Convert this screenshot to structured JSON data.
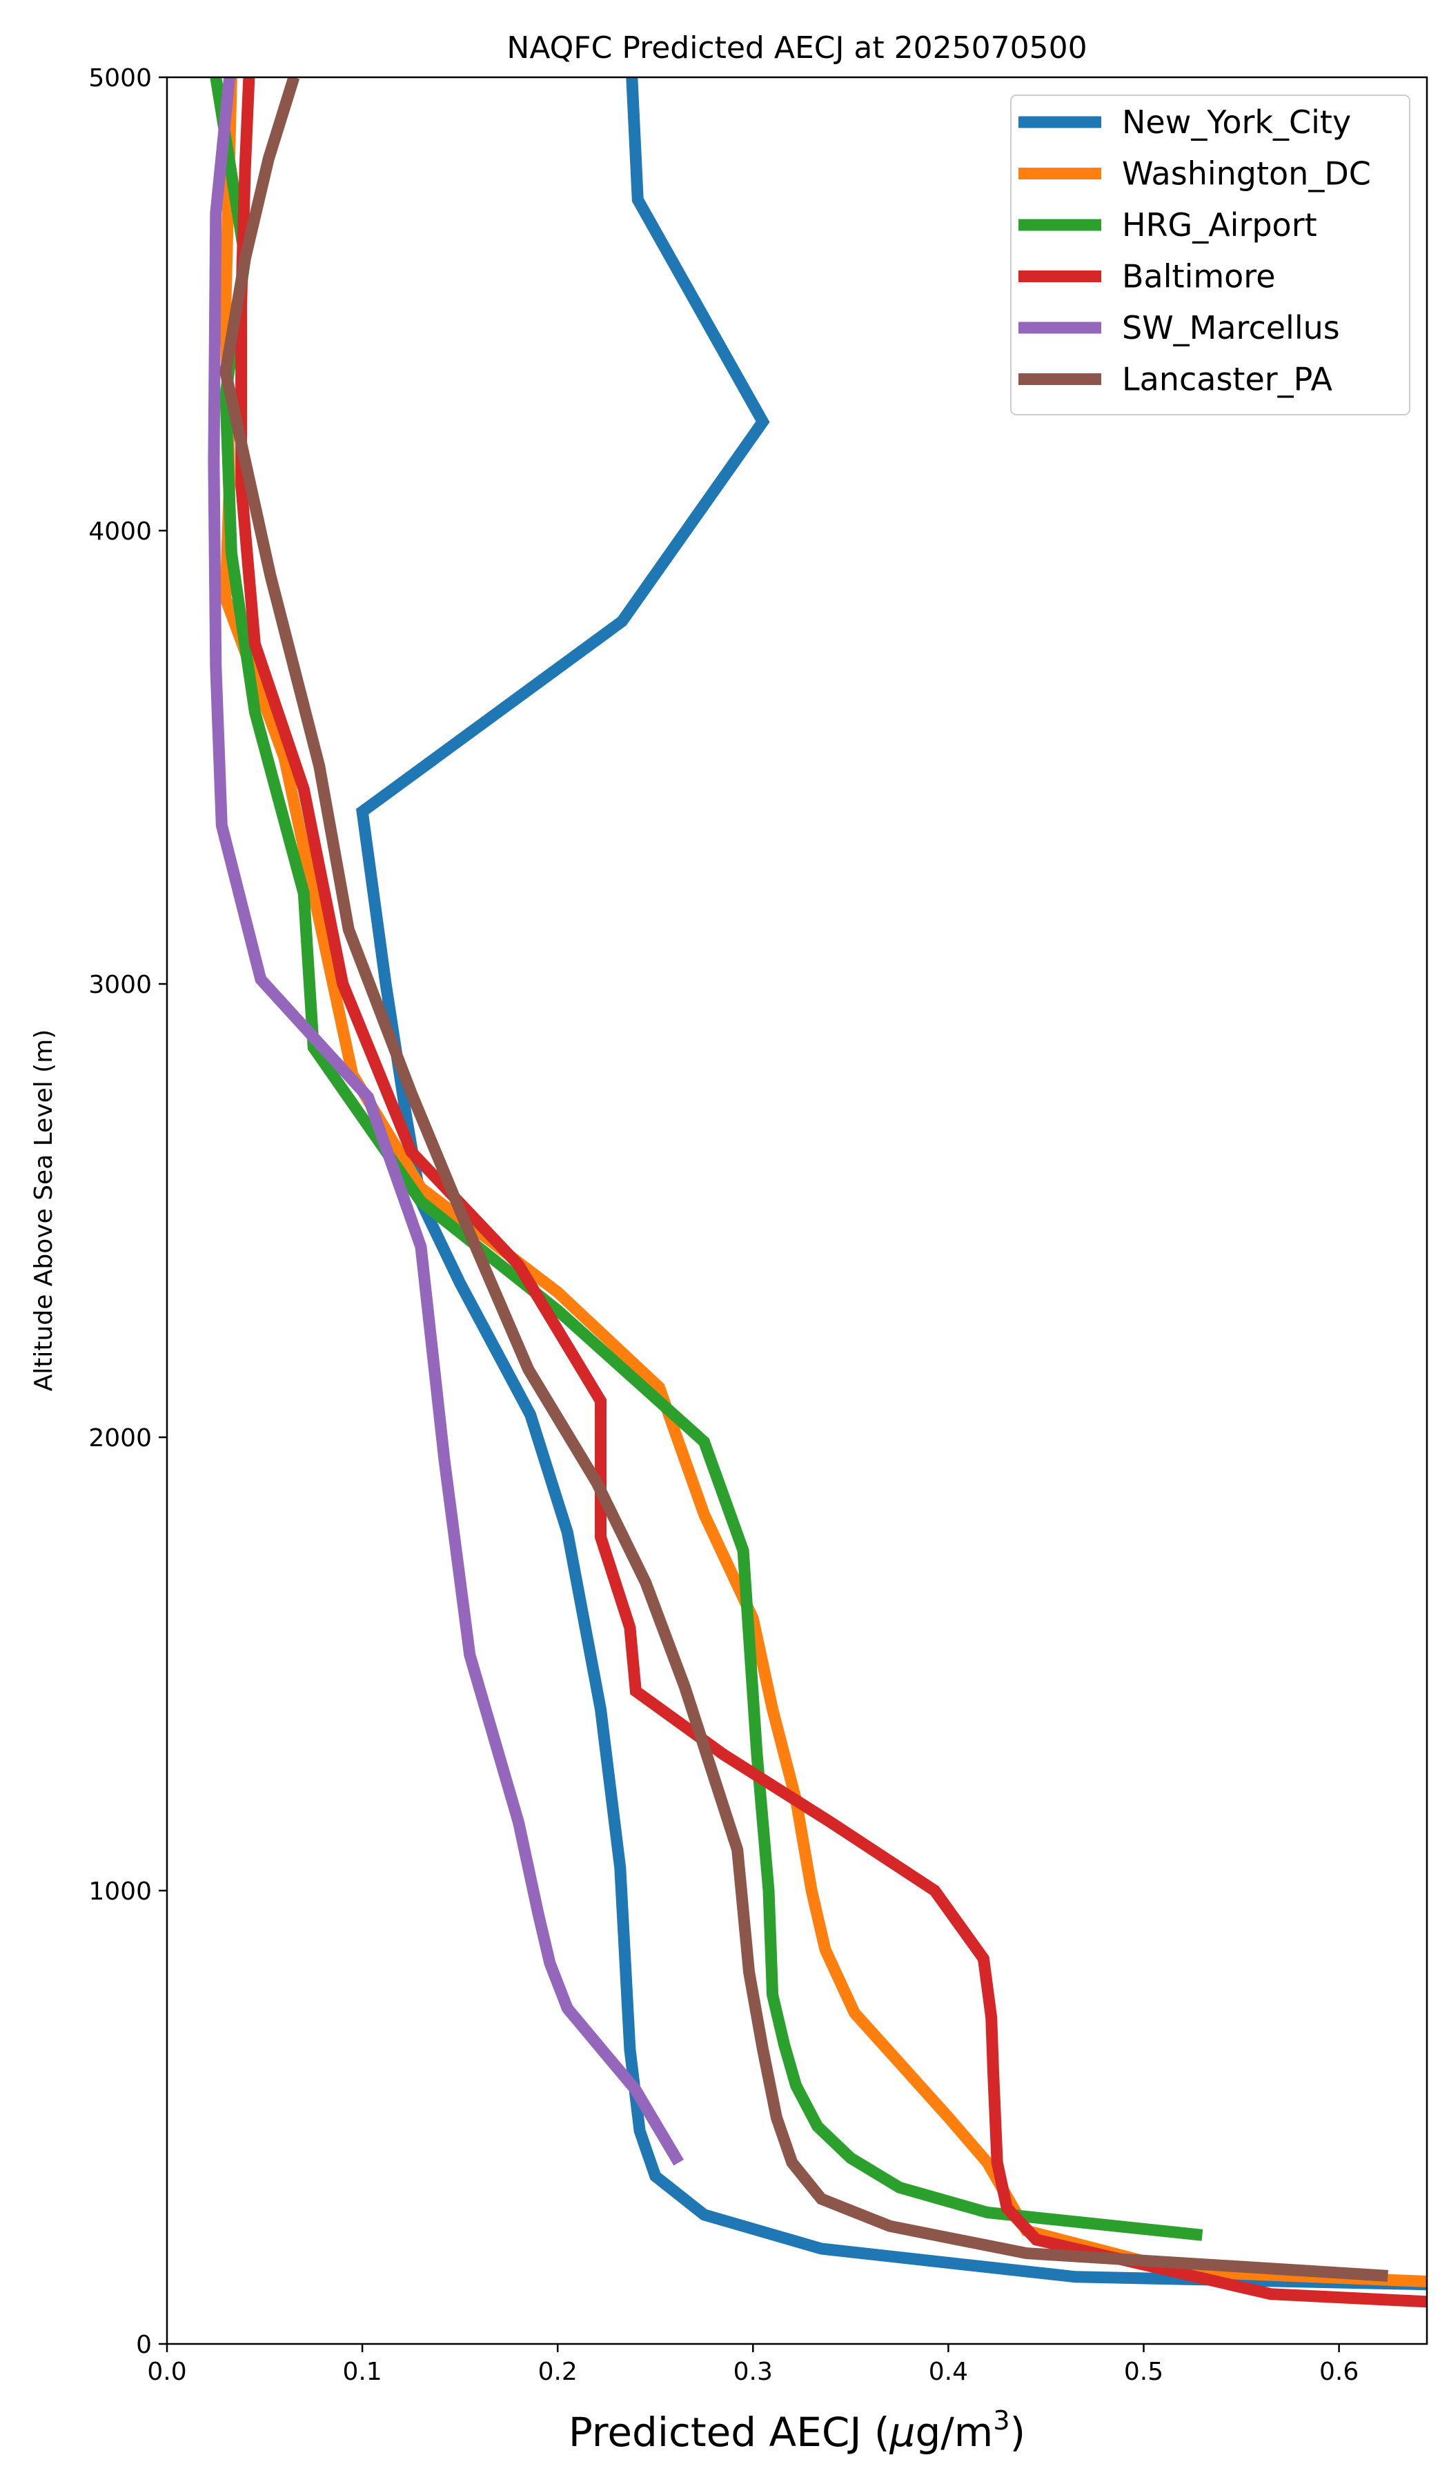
{
  "chart_data": {
    "type": "line",
    "title": "NAQFC Predicted AECJ at 2025070500",
    "xlabel": "Predicted AECJ (μg/m³)",
    "xlabel_main": "Predicted AECJ (",
    "xlabel_unit_mu": "μ",
    "xlabel_unit_rest": "g/m",
    "xlabel_unit_sup": "3",
    "xlabel_close": ")",
    "ylabel": "Altitude Above Sea Level (m)",
    "xlim": [
      0.0,
      0.645
    ],
    "ylim": [
      0,
      5000
    ],
    "xticks": [
      0.0,
      0.1,
      0.2,
      0.3,
      0.4,
      0.5,
      0.6
    ],
    "xtick_labels": [
      "0.0",
      "0.1",
      "0.2",
      "0.3",
      "0.4",
      "0.5",
      "0.6"
    ],
    "yticks": [
      0,
      1000,
      2000,
      3000,
      4000,
      5000
    ],
    "ytick_labels": [
      "0",
      "1000",
      "2000",
      "3000",
      "4000",
      "5000"
    ],
    "grid": false,
    "legend_position": "top-right",
    "series": [
      {
        "name": "New_York_City",
        "color": "#1f77b4",
        "points": [
          [
            0.66,
            130
          ],
          [
            0.465,
            148
          ],
          [
            0.335,
            210
          ],
          [
            0.275,
            285
          ],
          [
            0.25,
            370
          ],
          [
            0.242,
            470
          ],
          [
            0.237,
            650
          ],
          [
            0.232,
            1050
          ],
          [
            0.222,
            1400
          ],
          [
            0.205,
            1790
          ],
          [
            0.186,
            2050
          ],
          [
            0.15,
            2340
          ],
          [
            0.13,
            2520
          ],
          [
            0.122,
            2720
          ],
          [
            0.112,
            3000
          ],
          [
            0.1,
            3380
          ],
          [
            0.233,
            3800
          ],
          [
            0.305,
            4240
          ],
          [
            0.241,
            4730
          ],
          [
            0.238,
            5000
          ]
        ]
      },
      {
        "name": "Washington_DC",
        "color": "#ff7f0e",
        "points": [
          [
            0.66,
            135
          ],
          [
            0.52,
            160
          ],
          [
            0.44,
            250
          ],
          [
            0.42,
            400
          ],
          [
            0.4,
            500
          ],
          [
            0.375,
            620
          ],
          [
            0.352,
            730
          ],
          [
            0.337,
            870
          ],
          [
            0.33,
            1000
          ],
          [
            0.322,
            1200
          ],
          [
            0.31,
            1400
          ],
          [
            0.3,
            1600
          ],
          [
            0.275,
            1830
          ],
          [
            0.252,
            2110
          ],
          [
            0.2,
            2320
          ],
          [
            0.13,
            2550
          ],
          [
            0.095,
            2800
          ],
          [
            0.08,
            3100
          ],
          [
            0.06,
            3500
          ],
          [
            0.03,
            3850
          ],
          [
            0.032,
            4100
          ],
          [
            0.03,
            4500
          ],
          [
            0.033,
            5000
          ]
        ]
      },
      {
        "name": "HRG_Airport",
        "color": "#2ca02c",
        "points": [
          [
            0.53,
            240
          ],
          [
            0.42,
            290
          ],
          [
            0.375,
            345
          ],
          [
            0.35,
            410
          ],
          [
            0.333,
            480
          ],
          [
            0.322,
            570
          ],
          [
            0.316,
            660
          ],
          [
            0.31,
            770
          ],
          [
            0.308,
            1000
          ],
          [
            0.302,
            1300
          ],
          [
            0.295,
            1750
          ],
          [
            0.275,
            1990
          ],
          [
            0.2,
            2280
          ],
          [
            0.13,
            2520
          ],
          [
            0.075,
            2860
          ],
          [
            0.07,
            3200
          ],
          [
            0.045,
            3600
          ],
          [
            0.033,
            3950
          ],
          [
            0.03,
            4300
          ],
          [
            0.04,
            4600
          ],
          [
            0.025,
            5000
          ]
        ]
      },
      {
        "name": "Baltimore",
        "color": "#d62728",
        "points": [
          [
            0.66,
            90
          ],
          [
            0.565,
            110
          ],
          [
            0.445,
            230
          ],
          [
            0.43,
            300
          ],
          [
            0.425,
            400
          ],
          [
            0.423,
            600
          ],
          [
            0.422,
            720
          ],
          [
            0.418,
            850
          ],
          [
            0.393,
            1000
          ],
          [
            0.34,
            1150
          ],
          [
            0.285,
            1300
          ],
          [
            0.24,
            1440
          ],
          [
            0.237,
            1580
          ],
          [
            0.222,
            1780
          ],
          [
            0.222,
            2080
          ],
          [
            0.18,
            2380
          ],
          [
            0.125,
            2630
          ],
          [
            0.09,
            3000
          ],
          [
            0.07,
            3430
          ],
          [
            0.045,
            3750
          ],
          [
            0.038,
            4100
          ],
          [
            0.038,
            4500
          ],
          [
            0.04,
            4800
          ],
          [
            0.042,
            5000
          ]
        ]
      },
      {
        "name": "SW_Marcellus",
        "color": "#9467bd",
        "points": [
          [
            0.262,
            400
          ],
          [
            0.24,
            560
          ],
          [
            0.205,
            740
          ],
          [
            0.196,
            840
          ],
          [
            0.19,
            950
          ],
          [
            0.18,
            1150
          ],
          [
            0.155,
            1520
          ],
          [
            0.142,
            1950
          ],
          [
            0.13,
            2420
          ],
          [
            0.103,
            2750
          ],
          [
            0.048,
            3010
          ],
          [
            0.028,
            3350
          ],
          [
            0.025,
            3700
          ],
          [
            0.024,
            4150
          ],
          [
            0.025,
            4700
          ],
          [
            0.032,
            5000
          ]
        ]
      },
      {
        "name": "Lancaster_PA",
        "color": "#8c564b",
        "points": [
          [
            0.625,
            150
          ],
          [
            0.44,
            200
          ],
          [
            0.37,
            260
          ],
          [
            0.335,
            320
          ],
          [
            0.32,
            400
          ],
          [
            0.312,
            500
          ],
          [
            0.305,
            650
          ],
          [
            0.298,
            820
          ],
          [
            0.292,
            1090
          ],
          [
            0.28,
            1250
          ],
          [
            0.265,
            1450
          ],
          [
            0.245,
            1680
          ],
          [
            0.22,
            1900
          ],
          [
            0.185,
            2150
          ],
          [
            0.15,
            2500
          ],
          [
            0.125,
            2760
          ],
          [
            0.093,
            3120
          ],
          [
            0.078,
            3480
          ],
          [
            0.053,
            3900
          ],
          [
            0.03,
            4350
          ],
          [
            0.04,
            4600
          ],
          [
            0.052,
            4820
          ],
          [
            0.065,
            5000
          ]
        ]
      }
    ]
  }
}
